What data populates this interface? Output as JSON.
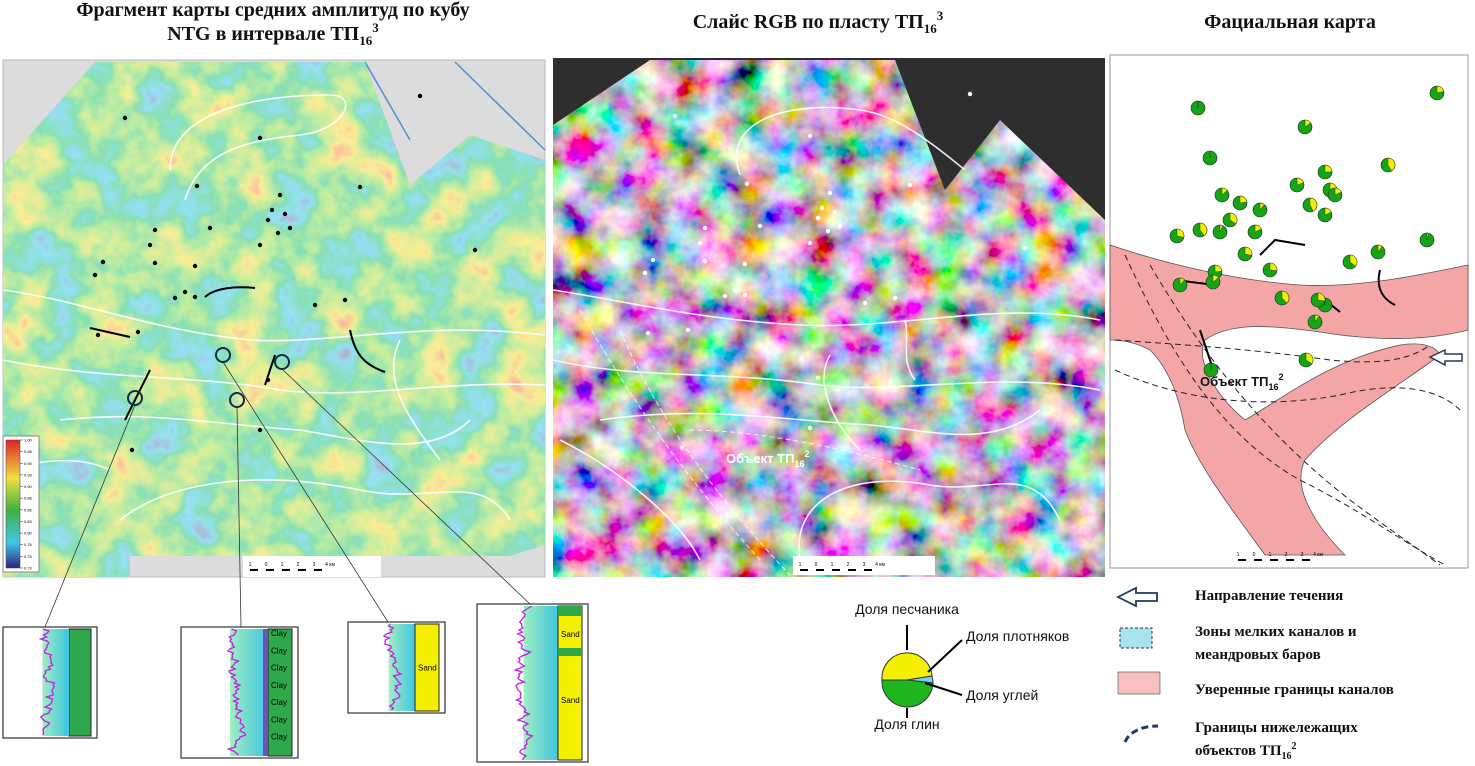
{
  "panels": [
    {
      "title": {
        "line1": "Фрагмент карты средних амплитуд по кубу",
        "line2": "NTG в интервале ТП",
        "sub": "16",
        "sup": "3"
      },
      "colorbar_ticks": [
        "1.00",
        "0.98",
        "0.95",
        "0.93",
        "0.90",
        "0.88",
        "0.85",
        "0.83",
        "0.80",
        "0.78",
        "0.75",
        "0.73"
      ],
      "scale": [
        "1",
        "0",
        "1",
        "2",
        "3",
        "4 км"
      ]
    },
    {
      "title": {
        "text": "Слайс RGB по пласту ТП",
        "sub": "16",
        "sup": "3"
      },
      "label": {
        "text": "Объект ТП",
        "sub": "16",
        "sup": "2"
      },
      "scale": [
        "1",
        "0",
        "1",
        "2",
        "3",
        "4 км"
      ]
    },
    {
      "title": {
        "text": "Фациальная карта"
      },
      "label": {
        "text": "Объект ТП",
        "sub": "16",
        "sup": "2"
      },
      "scale": [
        "1",
        "0",
        "1",
        "2",
        "3",
        "4 км"
      ]
    }
  ],
  "logs": [
    {
      "labels": []
    },
    {
      "labels": [
        "Clay",
        "Clay",
        "Clay",
        "Clay",
        "Clay",
        "Clay",
        "Clay"
      ]
    },
    {
      "labels": [
        "Sand"
      ]
    },
    {
      "labels": [
        "Sand",
        "Sand"
      ]
    }
  ],
  "pie_legend": {
    "top": "Доля песчаника",
    "right_top": "Доля плотняков",
    "right_bottom": "Доля углей",
    "bottom": "Доля глин"
  },
  "legend": [
    {
      "lines": [
        "Направление течения"
      ]
    },
    {
      "lines": [
        "Зоны мелких каналов и",
        "меандровых баров"
      ]
    },
    {
      "lines": [
        "Уверенные границы каналов"
      ]
    },
    {
      "lines": [
        "Границы нижележащих",
        "объектов ТП"
      ],
      "sub": "16",
      "sup": "2"
    }
  ]
}
